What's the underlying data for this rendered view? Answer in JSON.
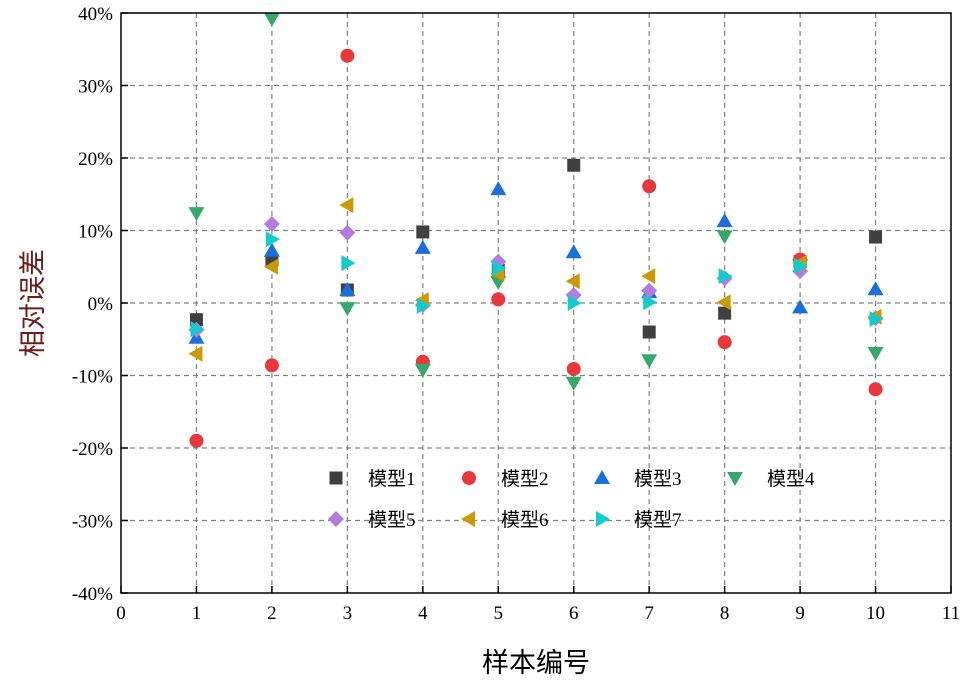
{
  "chart_data": {
    "type": "scatter",
    "title": "",
    "xlabel": "样本编号",
    "ylabel": "相对误差",
    "xlim": [
      0,
      11
    ],
    "ylim": [
      -40,
      40
    ],
    "x_ticks": [
      "0",
      "1",
      "2",
      "3",
      "4",
      "5",
      "6",
      "7",
      "8",
      "9",
      "10",
      "11"
    ],
    "y_ticks": [
      "-40%",
      "-30%",
      "-20%",
      "-10%",
      "0%",
      "10%",
      "20%",
      "30%",
      "40%"
    ],
    "grid": true,
    "legend_placement": "bottom-center",
    "x": [
      1,
      2,
      3,
      4,
      5,
      6,
      7,
      8,
      9,
      10
    ],
    "series": [
      {
        "name": "模型1",
        "marker": "square",
        "color": "#404040",
        "values": [
          -2.3,
          5.9,
          1.8,
          9.8,
          4.5,
          19.0,
          -4.0,
          -1.4,
          5.7,
          9.1
        ]
      },
      {
        "name": "模型2",
        "marker": "circle",
        "color": "#e8383b",
        "values": [
          -19.0,
          -8.6,
          34.1,
          -8.1,
          0.5,
          -9.1,
          16.1,
          -5.4,
          6.0,
          -11.9
        ]
      },
      {
        "name": "模型3",
        "marker": "triangle-up",
        "color": "#1a6fdc",
        "values": [
          -4.8,
          7.2,
          1.8,
          7.6,
          15.7,
          7.0,
          1.5,
          11.3,
          -0.6,
          1.9
        ]
      },
      {
        "name": "模型4",
        "marker": "triangle-down",
        "color": "#35a96a",
        "values": [
          12.4,
          39.2,
          -0.7,
          -9.2,
          2.9,
          -11.0,
          -7.9,
          9.2,
          5.2,
          -6.9
        ]
      },
      {
        "name": "模型5",
        "marker": "diamond",
        "color": "#b07ce0",
        "values": [
          -3.7,
          10.9,
          9.7,
          -0.3,
          5.7,
          1.1,
          1.7,
          3.4,
          4.4,
          -2.1
        ]
      },
      {
        "name": "模型6",
        "marker": "triangle-left",
        "color": "#cc9a00",
        "values": [
          -7.0,
          5.0,
          13.5,
          0.4,
          4.0,
          3.0,
          3.7,
          0.1,
          5.5,
          -1.9
        ]
      },
      {
        "name": "模型7",
        "marker": "triangle-right",
        "color": "#10cccc",
        "values": [
          -3.6,
          8.8,
          5.5,
          -0.4,
          4.8,
          0.0,
          0.1,
          3.7,
          5.1,
          -2.2
        ]
      }
    ]
  }
}
